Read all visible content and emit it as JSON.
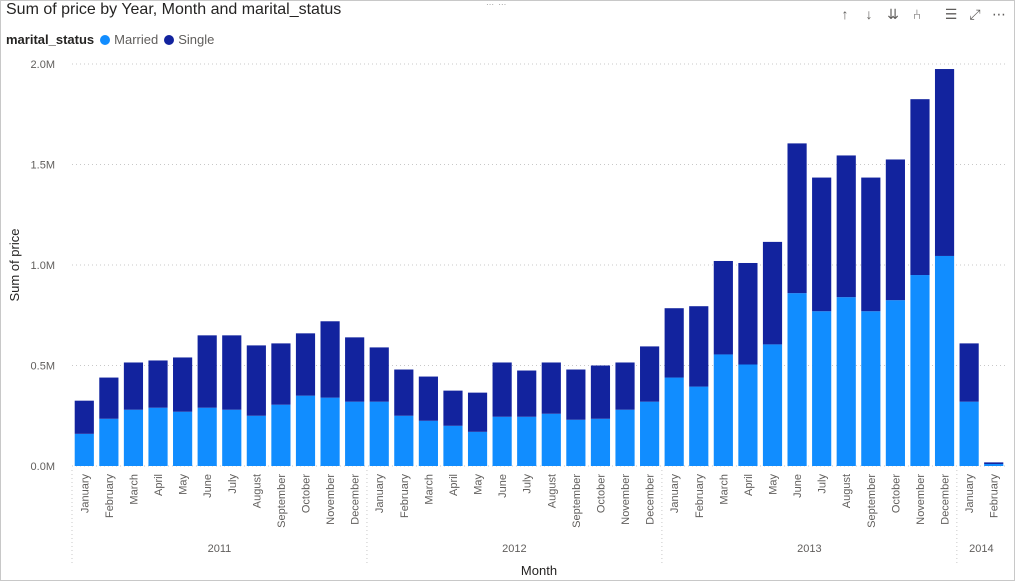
{
  "chart_data": {
    "type": "bar",
    "stacked": true,
    "title": "Sum of price by Year, Month and marital_status",
    "legend_title": "marital_status",
    "xlabel": "Month",
    "ylabel": "Sum of price",
    "ylim": [
      0,
      2000000
    ],
    "yticks": [
      {
        "value": 0,
        "label": "0.0M"
      },
      {
        "value": 500000,
        "label": "0.5M"
      },
      {
        "value": 1000000,
        "label": "1.0M"
      },
      {
        "value": 1500000,
        "label": "1.5M"
      },
      {
        "value": 2000000,
        "label": "2.0M"
      }
    ],
    "categories": [
      "January",
      "February",
      "March",
      "April",
      "May",
      "June",
      "July",
      "August",
      "September",
      "October",
      "November",
      "December",
      "January",
      "February",
      "March",
      "April",
      "May",
      "June",
      "July",
      "August",
      "September",
      "October",
      "November",
      "December",
      "January",
      "February",
      "March",
      "April",
      "May",
      "June",
      "July",
      "August",
      "September",
      "October",
      "November",
      "December",
      "January",
      "February"
    ],
    "years": [
      {
        "label": "2011",
        "count": 12
      },
      {
        "label": "2012",
        "count": 12
      },
      {
        "label": "2013",
        "count": 12
      },
      {
        "label": "2014",
        "count": 2
      }
    ],
    "series": [
      {
        "name": "Married",
        "color": "#118dff",
        "values": [
          160000,
          235000,
          280000,
          290000,
          270000,
          290000,
          280000,
          250000,
          305000,
          350000,
          340000,
          320000,
          320000,
          250000,
          225000,
          200000,
          170000,
          245000,
          245000,
          260000,
          230000,
          235000,
          280000,
          320000,
          440000,
          395000,
          555000,
          505000,
          605000,
          860000,
          770000,
          840000,
          770000,
          825000,
          950000,
          1045000,
          320000,
          10000
        ]
      },
      {
        "name": "Single",
        "color": "#12239e",
        "values": [
          165000,
          205000,
          235000,
          235000,
          270000,
          360000,
          370000,
          350000,
          305000,
          310000,
          380000,
          320000,
          270000,
          230000,
          220000,
          175000,
          195000,
          270000,
          230000,
          255000,
          250000,
          265000,
          235000,
          275000,
          345000,
          400000,
          465000,
          505000,
          510000,
          745000,
          665000,
          705000,
          665000,
          700000,
          875000,
          930000,
          290000,
          8000
        ]
      }
    ]
  },
  "toolbar": {
    "grip": "⋯ ⋯",
    "drill_up": "↑",
    "drill_down": "↓",
    "expand_down": "⇊",
    "expand_all": "⑃",
    "filter": "☰",
    "focus": "⤢",
    "more": "⋯"
  }
}
